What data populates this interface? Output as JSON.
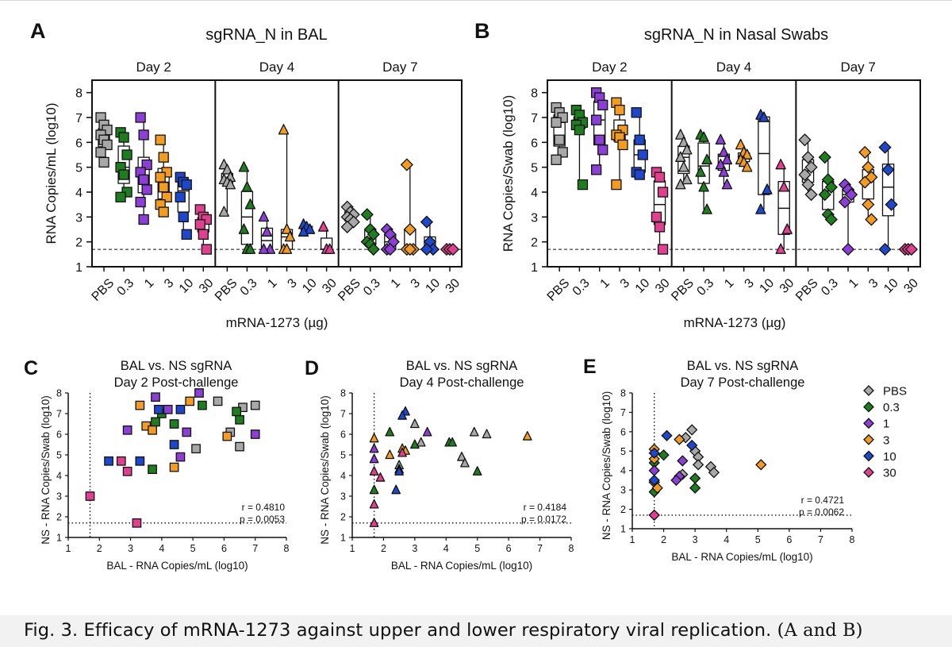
{
  "caption": {
    "main": "Fig. 3. Efficacy of mRNA-1273 against upper and lower respiratory viral replication.",
    "tail": "(A and B)"
  },
  "colors": {
    "PBS": "#a8a8a8",
    "0.3": "#1e7d1e",
    "1": "#8c3fd6",
    "3": "#f39c1f",
    "10": "#1f47cc",
    "30": "#e0408f"
  },
  "chart_data": [
    {
      "panel": "A",
      "type": "box",
      "title": "sgRNA_N in BAL",
      "ylabel": "RNA Copies/mL (log10)",
      "xlabel": "mRNA-1273 (µg)",
      "ylim": [
        1,
        8.5
      ],
      "yticks": [
        1,
        2,
        3,
        4,
        5,
        6,
        7,
        8
      ],
      "limit_of_detection": 1.7,
      "groups": [
        {
          "day": "Day 2",
          "marker": "square",
          "categories": [
            {
              "label": "PBS",
              "values": [
                7.0,
                6.7,
                6.5,
                6.3,
                6.1,
                5.9,
                5.6,
                5.2
              ]
            },
            {
              "label": "0.3",
              "values": [
                6.4,
                6.2,
                5.5,
                5.0,
                4.7,
                4.0,
                3.8
              ]
            },
            {
              "label": "1",
              "values": [
                7.0,
                6.3,
                5.1,
                4.8,
                4.5,
                4.1,
                3.6,
                2.9
              ]
            },
            {
              "label": "3",
              "values": [
                6.1,
                5.4,
                4.8,
                4.6,
                4.2,
                3.8,
                3.5,
                3.2
              ]
            },
            {
              "label": "10",
              "values": [
                4.6,
                4.4,
                4.3,
                3.8,
                3.0,
                2.3
              ]
            },
            {
              "label": "30",
              "values": [
                3.3,
                3.0,
                2.9,
                2.7,
                2.3,
                1.7
              ]
            }
          ]
        },
        {
          "day": "Day 4",
          "marker": "triangle",
          "categories": [
            {
              "label": "PBS",
              "values": [
                5.1,
                4.9,
                4.6,
                4.5,
                4.4,
                4.3,
                3.2
              ]
            },
            {
              "label": "0.3",
              "values": [
                5.0,
                4.2,
                3.5,
                2.5,
                1.7,
                1.7
              ]
            },
            {
              "label": "1",
              "values": [
                3.0,
                2.4,
                1.7,
                1.7
              ]
            },
            {
              "label": "3",
              "values": [
                6.5,
                2.5,
                2.2,
                1.7,
                1.7
              ]
            },
            {
              "label": "10",
              "values": [
                2.7,
                2.6,
                2.5,
                2.4
              ]
            },
            {
              "label": "30",
              "values": [
                2.6,
                1.7,
                1.7
              ]
            }
          ]
        },
        {
          "day": "Day 7",
          "marker": "diamond",
          "categories": [
            {
              "label": "PBS",
              "values": [
                3.4,
                3.2,
                3.1,
                3.0,
                2.9,
                2.8,
                2.6
              ]
            },
            {
              "label": "0.3",
              "values": [
                3.1,
                2.5,
                2.3,
                2.0,
                1.9,
                1.7
              ]
            },
            {
              "label": "1",
              "values": [
                2.5,
                2.3,
                2.0,
                1.7,
                1.7
              ]
            },
            {
              "label": "3",
              "values": [
                5.1,
                2.5,
                1.7,
                1.7,
                1.7
              ]
            },
            {
              "label": "10",
              "values": [
                2.8,
                2.0,
                1.7,
                1.7
              ]
            },
            {
              "label": "30",
              "values": [
                1.7,
                1.7,
                1.7
              ]
            }
          ]
        }
      ]
    },
    {
      "panel": "B",
      "type": "box",
      "title": "sgRNA_N in Nasal Swabs",
      "ylabel": "RNA Copies/Swab (log10)",
      "xlabel": "mRNA-1273 (µg)",
      "ylim": [
        1,
        8.5
      ],
      "yticks": [
        1,
        2,
        3,
        4,
        5,
        6,
        7,
        8
      ],
      "limit_of_detection": 1.7,
      "groups": [
        {
          "day": "Day 2",
          "marker": "square",
          "categories": [
            {
              "label": "PBS",
              "values": [
                7.4,
                7.2,
                7.0,
                6.8,
                6.1,
                5.6,
                5.3
              ]
            },
            {
              "label": "0.3",
              "values": [
                7.3,
                7.1,
                6.8,
                6.7,
                6.5,
                4.3
              ]
            },
            {
              "label": "1",
              "values": [
                8.0,
                7.8,
                7.5,
                6.9,
                6.1,
                5.7,
                4.9
              ]
            },
            {
              "label": "3",
              "values": [
                7.6,
                7.3,
                6.5,
                6.3,
                6.2,
                5.9,
                4.3
              ]
            },
            {
              "label": "10",
              "values": [
                7.2,
                6.1,
                5.5,
                4.8,
                4.7
              ]
            },
            {
              "label": "30",
              "values": [
                4.8,
                4.6,
                4.0,
                3.0,
                2.6,
                1.7
              ]
            }
          ]
        },
        {
          "day": "Day 4",
          "marker": "triangle",
          "categories": [
            {
              "label": "PBS",
              "values": [
                6.3,
                6.0,
                5.7,
                5.4,
                5.0,
                4.5,
                4.3
              ]
            },
            {
              "label": "0.3",
              "values": [
                6.3,
                6.2,
                5.3,
                4.8,
                4.2,
                3.3
              ]
            },
            {
              "label": "1",
              "values": [
                6.1,
                5.6,
                5.3,
                5.1,
                4.8,
                4.3
              ]
            },
            {
              "label": "3",
              "values": [
                5.9,
                5.6,
                5.5,
                5.3,
                5.2,
                5.0
              ]
            },
            {
              "label": "10",
              "values": [
                7.1,
                7.0,
                4.1,
                3.3
              ]
            },
            {
              "label": "30",
              "values": [
                5.1,
                4.2,
                2.5,
                1.7
              ]
            }
          ]
        },
        {
          "day": "Day 7",
          "marker": "diamond",
          "categories": [
            {
              "label": "PBS",
              "values": [
                6.1,
                5.4,
                5.0,
                4.7,
                4.3,
                3.9
              ]
            },
            {
              "label": "0.3",
              "values": [
                5.4,
                4.5,
                4.2,
                3.9,
                3.1,
                2.9
              ]
            },
            {
              "label": "1",
              "values": [
                4.3,
                4.1,
                3.9,
                3.6,
                1.7
              ]
            },
            {
              "label": "3",
              "values": [
                5.6,
                5.0,
                4.6,
                4.4,
                3.5,
                2.9
              ]
            },
            {
              "label": "10",
              "values": [
                5.8,
                4.9,
                3.5,
                1.7
              ]
            },
            {
              "label": "30",
              "values": [
                1.7,
                1.7,
                1.7
              ]
            }
          ]
        }
      ]
    },
    {
      "panel": "C",
      "type": "scatter",
      "title_lines": [
        "BAL vs. NS sgRNA",
        "Day 2 Post-challenge"
      ],
      "xlabel": "BAL - RNA Copies/mL (log10)",
      "ylabel": "NS - RNA Copies/Swab (log10)",
      "xlim": [
        1,
        8
      ],
      "ylim": [
        1,
        8
      ],
      "ticks": [
        1,
        2,
        3,
        4,
        5,
        6,
        7,
        8
      ],
      "lod": 1.7,
      "marker": "square",
      "stats": [
        "r = 0.4810",
        "p = 0.0053"
      ],
      "points": [
        {
          "x": 6.6,
          "y": 7.3,
          "g": "PBS"
        },
        {
          "x": 7.0,
          "y": 7.4,
          "g": "PBS"
        },
        {
          "x": 5.8,
          "y": 7.6,
          "g": "PBS"
        },
        {
          "x": 5.1,
          "y": 5.3,
          "g": "PBS"
        },
        {
          "x": 6.5,
          "y": 5.4,
          "g": "PBS"
        },
        {
          "x": 6.2,
          "y": 6.1,
          "g": "PBS"
        },
        {
          "x": 4.0,
          "y": 7.0,
          "g": "0.3"
        },
        {
          "x": 5.3,
          "y": 7.4,
          "g": "0.3"
        },
        {
          "x": 6.4,
          "y": 7.1,
          "g": "0.3"
        },
        {
          "x": 4.4,
          "y": 6.5,
          "g": "0.3"
        },
        {
          "x": 6.5,
          "y": 6.7,
          "g": "0.3"
        },
        {
          "x": 3.8,
          "y": 6.6,
          "g": "0.3"
        },
        {
          "x": 3.7,
          "y": 4.3,
          "g": "0.3"
        },
        {
          "x": 5.2,
          "y": 8.0,
          "g": "1"
        },
        {
          "x": 3.8,
          "y": 7.8,
          "g": "1"
        },
        {
          "x": 4.2,
          "y": 7.2,
          "g": "1"
        },
        {
          "x": 2.9,
          "y": 6.2,
          "g": "1"
        },
        {
          "x": 4.8,
          "y": 6.1,
          "g": "1"
        },
        {
          "x": 4.6,
          "y": 4.9,
          "g": "1"
        },
        {
          "x": 7.0,
          "y": 6.0,
          "g": "1"
        },
        {
          "x": 3.3,
          "y": 7.4,
          "g": "3"
        },
        {
          "x": 4.9,
          "y": 7.6,
          "g": "3"
        },
        {
          "x": 3.5,
          "y": 6.4,
          "g": "3"
        },
        {
          "x": 3.7,
          "y": 6.2,
          "g": "3"
        },
        {
          "x": 6.1,
          "y": 5.9,
          "g": "3"
        },
        {
          "x": 4.4,
          "y": 4.4,
          "g": "3"
        },
        {
          "x": 4.6,
          "y": 7.2,
          "g": "10"
        },
        {
          "x": 4.4,
          "y": 5.5,
          "g": "10"
        },
        {
          "x": 3.3,
          "y": 4.7,
          "g": "10"
        },
        {
          "x": 2.3,
          "y": 4.7,
          "g": "10"
        },
        {
          "x": 3.9,
          "y": 7.2,
          "g": "10"
        },
        {
          "x": 2.7,
          "y": 4.7,
          "g": "30"
        },
        {
          "x": 2.9,
          "y": 4.2,
          "g": "30"
        },
        {
          "x": 3.2,
          "y": 1.7,
          "g": "30"
        },
        {
          "x": 1.7,
          "y": 3.0,
          "g": "30"
        }
      ]
    },
    {
      "panel": "D",
      "type": "scatter",
      "title_lines": [
        "BAL vs. NS sgRNA",
        "Day 4 Post-challenge"
      ],
      "xlabel": "BAL - RNA Copies/mL (log10)",
      "ylabel": "NS - RNA Copies/Swab (log10)",
      "xlim": [
        1,
        8
      ],
      "ylim": [
        1,
        8
      ],
      "ticks": [
        1,
        2,
        3,
        4,
        5,
        6,
        7,
        8
      ],
      "lod": 1.7,
      "marker": "triangle",
      "stats": [
        "r = 0.4184",
        "p = 0.0172"
      ],
      "points": [
        {
          "x": 3.0,
          "y": 6.5,
          "g": "PBS"
        },
        {
          "x": 4.9,
          "y": 6.1,
          "g": "PBS"
        },
        {
          "x": 5.3,
          "y": 6.0,
          "g": "PBS"
        },
        {
          "x": 3.2,
          "y": 5.6,
          "g": "PBS"
        },
        {
          "x": 4.5,
          "y": 4.9,
          "g": "PBS"
        },
        {
          "x": 4.6,
          "y": 4.6,
          "g": "PBS"
        },
        {
          "x": 2.5,
          "y": 4.5,
          "g": "PBS"
        },
        {
          "x": 2.2,
          "y": 6.1,
          "g": "0.3"
        },
        {
          "x": 4.1,
          "y": 5.6,
          "g": "0.3"
        },
        {
          "x": 4.2,
          "y": 5.6,
          "g": "0.3"
        },
        {
          "x": 3.0,
          "y": 5.5,
          "g": "0.3"
        },
        {
          "x": 5.0,
          "y": 4.2,
          "g": "0.3"
        },
        {
          "x": 1.7,
          "y": 3.3,
          "g": "0.3"
        },
        {
          "x": 3.4,
          "y": 6.1,
          "g": "1"
        },
        {
          "x": 1.7,
          "y": 5.3,
          "g": "1"
        },
        {
          "x": 2.5,
          "y": 4.3,
          "g": "1"
        },
        {
          "x": 1.7,
          "y": 4.8,
          "g": "1"
        },
        {
          "x": 6.6,
          "y": 5.9,
          "g": "3"
        },
        {
          "x": 1.7,
          "y": 5.8,
          "g": "3"
        },
        {
          "x": 2.6,
          "y": 5.3,
          "g": "3"
        },
        {
          "x": 2.7,
          "y": 5.2,
          "g": "3"
        },
        {
          "x": 2.2,
          "y": 5.0,
          "g": "3"
        },
        {
          "x": 2.7,
          "y": 7.1,
          "g": "10"
        },
        {
          "x": 2.6,
          "y": 6.9,
          "g": "10"
        },
        {
          "x": 2.5,
          "y": 4.2,
          "g": "10"
        },
        {
          "x": 2.4,
          "y": 3.3,
          "g": "10"
        },
        {
          "x": 2.6,
          "y": 5.1,
          "g": "30"
        },
        {
          "x": 1.7,
          "y": 4.2,
          "g": "30"
        },
        {
          "x": 1.9,
          "y": 3.9,
          "g": "30"
        },
        {
          "x": 1.7,
          "y": 2.6,
          "g": "30"
        },
        {
          "x": 1.7,
          "y": 1.7,
          "g": "30"
        }
      ]
    },
    {
      "panel": "E",
      "type": "scatter",
      "title_lines": [
        "BAL vs. NS sgRNA",
        "Day 7 Post-challenge"
      ],
      "xlabel": "BAL - RNA Copies/mL (log10)",
      "ylabel": "NS - RNA Copies/Swab (log10)",
      "xlim": [
        1,
        8
      ],
      "ylim": [
        1,
        8
      ],
      "ticks": [
        1,
        2,
        3,
        4,
        5,
        6,
        7,
        8
      ],
      "lod": 1.7,
      "marker": "diamond",
      "stats": [
        "r = 0.4721",
        "p = 0.0062"
      ],
      "points": [
        {
          "x": 2.9,
          "y": 6.1,
          "g": "PBS"
        },
        {
          "x": 2.7,
          "y": 5.7,
          "g": "PBS"
        },
        {
          "x": 3.0,
          "y": 5.0,
          "g": "PBS"
        },
        {
          "x": 3.1,
          "y": 4.7,
          "g": "PBS"
        },
        {
          "x": 3.5,
          "y": 4.2,
          "g": "PBS"
        },
        {
          "x": 3.6,
          "y": 3.9,
          "g": "PBS"
        },
        {
          "x": 3.1,
          "y": 4.3,
          "g": "PBS"
        },
        {
          "x": 2.6,
          "y": 3.8,
          "g": "PBS"
        },
        {
          "x": 2.0,
          "y": 4.8,
          "g": "0.3"
        },
        {
          "x": 1.7,
          "y": 4.4,
          "g": "0.3"
        },
        {
          "x": 3.0,
          "y": 3.6,
          "g": "0.3"
        },
        {
          "x": 1.7,
          "y": 3.4,
          "g": "0.3"
        },
        {
          "x": 3.0,
          "y": 3.1,
          "g": "0.3"
        },
        {
          "x": 1.7,
          "y": 2.9,
          "g": "0.3"
        },
        {
          "x": 2.5,
          "y": 3.7,
          "g": "1"
        },
        {
          "x": 2.4,
          "y": 3.5,
          "g": "1"
        },
        {
          "x": 1.7,
          "y": 4.0,
          "g": "1"
        },
        {
          "x": 2.6,
          "y": 4.5,
          "g": "1"
        },
        {
          "x": 1.7,
          "y": 1.7,
          "g": "1"
        },
        {
          "x": 5.1,
          "y": 4.3,
          "g": "3"
        },
        {
          "x": 2.5,
          "y": 5.6,
          "g": "3"
        },
        {
          "x": 1.7,
          "y": 5.1,
          "g": "3"
        },
        {
          "x": 1.7,
          "y": 4.6,
          "g": "3"
        },
        {
          "x": 1.7,
          "y": 3.4,
          "g": "3"
        },
        {
          "x": 1.8,
          "y": 3.1,
          "g": "3"
        },
        {
          "x": 2.1,
          "y": 5.8,
          "g": "10"
        },
        {
          "x": 2.9,
          "y": 5.3,
          "g": "10"
        },
        {
          "x": 1.7,
          "y": 4.9,
          "g": "10"
        },
        {
          "x": 1.7,
          "y": 3.5,
          "g": "10"
        },
        {
          "x": 1.7,
          "y": 1.7,
          "g": "30"
        }
      ]
    }
  ],
  "legend": {
    "entries": [
      "PBS",
      "0.3",
      "1",
      "3",
      "10",
      "30"
    ]
  }
}
